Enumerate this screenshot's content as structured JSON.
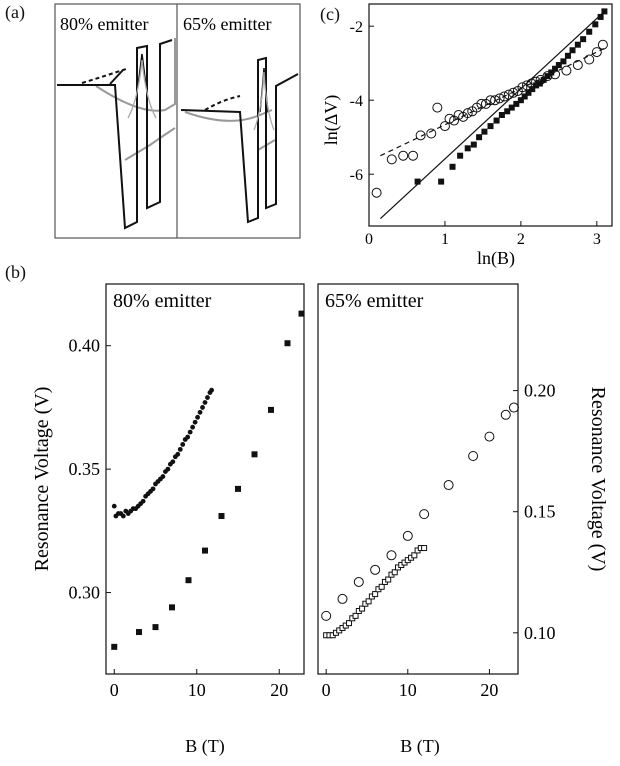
{
  "panel_labels": {
    "a": "(a)",
    "b": "(b)",
    "c": "(c)"
  },
  "chart_data": [
    {
      "id": "a",
      "type": "diagram",
      "subpanels": [
        {
          "label": "80% emitter"
        },
        {
          "label": "65% emitter"
        }
      ]
    },
    {
      "id": "c",
      "type": "scatter",
      "xlabel": "ln(B)",
      "ylabel": "ln(ΔV)",
      "xlim": [
        0,
        3.2
      ],
      "ylim": [
        -7.4,
        -1.4
      ],
      "xticks": [
        0,
        1,
        2,
        3
      ],
      "yticks": [
        -2,
        -4,
        -6
      ],
      "ytick_labels": [
        "-2",
        "-4",
        "-6"
      ],
      "series": [
        {
          "marker": "square-filled",
          "x": [
            0.64,
            0.95,
            1.1,
            1.2,
            1.3,
            1.38,
            1.45,
            1.52,
            1.6,
            1.68,
            1.75,
            1.82,
            1.88,
            1.94,
            2.0,
            2.05,
            2.1,
            2.15,
            2.2,
            2.25,
            2.3,
            2.35,
            2.4,
            2.45,
            2.5,
            2.56,
            2.62,
            2.68,
            2.75,
            2.82,
            2.9,
            2.98,
            3.05,
            3.1
          ],
          "y": [
            -6.2,
            -6.2,
            -5.8,
            -5.5,
            -5.3,
            -5.2,
            -5.0,
            -4.85,
            -4.7,
            -4.55,
            -4.4,
            -4.3,
            -4.2,
            -4.1,
            -4.0,
            -3.9,
            -3.8,
            -3.7,
            -3.6,
            -3.55,
            -3.45,
            -3.35,
            -3.25,
            -3.15,
            -3.05,
            -2.95,
            -2.8,
            -2.65,
            -2.5,
            -2.35,
            -2.15,
            -1.95,
            -1.75,
            -1.6
          ]
        },
        {
          "marker": "circle-open",
          "x": [
            0.1,
            0.3,
            0.45,
            0.58,
            0.68,
            0.82,
            0.9,
            1.0,
            1.06,
            1.12,
            1.18,
            1.24,
            1.3,
            1.36,
            1.42,
            1.48,
            1.54,
            1.6,
            1.66,
            1.72,
            1.78,
            1.84,
            1.9,
            1.96,
            2.02,
            2.08,
            2.14,
            2.2,
            2.26,
            2.35,
            2.45,
            2.6,
            2.75,
            2.9,
            3.0,
            3.08
          ],
          "y": [
            -6.5,
            -5.6,
            -5.5,
            -5.5,
            -4.95,
            -4.9,
            -4.2,
            -4.7,
            -4.5,
            -4.55,
            -4.4,
            -4.45,
            -4.35,
            -4.3,
            -4.2,
            -4.1,
            -4.1,
            -4.0,
            -4.0,
            -3.95,
            -3.9,
            -3.85,
            -3.8,
            -3.75,
            -3.65,
            -3.6,
            -3.55,
            -3.5,
            -3.45,
            -3.35,
            -3.3,
            -3.2,
            -3.05,
            -2.9,
            -2.7,
            -2.5
          ]
        }
      ],
      "fit_lines": [
        {
          "style": "solid",
          "x": [
            0.15,
            3.1
          ],
          "y": [
            -7.2,
            -1.6
          ]
        },
        {
          "style": "dashed",
          "x": [
            0.15,
            3.1
          ],
          "y": [
            -5.5,
            -2.6
          ]
        }
      ]
    },
    {
      "id": "b1",
      "type": "scatter",
      "title": "80% emitter",
      "xlabel": "B (T)",
      "ylabel": "Resonance Voltage (V)",
      "xlim": [
        -1,
        23
      ],
      "ylim": [
        0.267,
        0.425
      ],
      "xticks": [
        0,
        10,
        20
      ],
      "yticks": [
        0.3,
        0.35,
        0.4
      ],
      "ytick_labels": [
        "0.30",
        "0.35",
        "0.40"
      ],
      "series": [
        {
          "marker": "dot-filled",
          "x": [
            0,
            0.2,
            0.5,
            0.8,
            1.1,
            1.4,
            1.7,
            2.0,
            2.3,
            2.6,
            2.9,
            3.2,
            3.5,
            3.8,
            4.1,
            4.4,
            4.7,
            5.0,
            5.3,
            5.6,
            5.9,
            6.2,
            6.5,
            6.8,
            7.1,
            7.4,
            7.7,
            8.0,
            8.3,
            8.6,
            8.9,
            9.2,
            9.5,
            9.8,
            10.1,
            10.4,
            10.7,
            11.0,
            11.3,
            11.6,
            11.8
          ],
          "y": [
            0.335,
            0.331,
            0.332,
            0.332,
            0.331,
            0.333,
            0.332,
            0.333,
            0.334,
            0.334,
            0.335,
            0.336,
            0.337,
            0.339,
            0.34,
            0.341,
            0.342,
            0.344,
            0.345,
            0.346,
            0.347,
            0.349,
            0.35,
            0.352,
            0.353,
            0.355,
            0.356,
            0.358,
            0.36,
            0.362,
            0.363,
            0.365,
            0.367,
            0.369,
            0.371,
            0.373,
            0.375,
            0.377,
            0.379,
            0.381,
            0.382
          ]
        },
        {
          "marker": "square-filled",
          "x": [
            0,
            3,
            5,
            7,
            9,
            11,
            13,
            15,
            17,
            19,
            21,
            22.7
          ],
          "y": [
            0.278,
            0.284,
            0.286,
            0.294,
            0.305,
            0.317,
            0.331,
            0.342,
            0.356,
            0.374,
            0.401,
            0.413
          ]
        }
      ]
    },
    {
      "id": "b2",
      "type": "scatter",
      "title": "65% emitter",
      "xlabel": "B (T)",
      "ylabel": "Resonance Voltage (V)",
      "xlim": [
        -1,
        23.5
      ],
      "ylim": [
        0.083,
        0.244
      ],
      "xticks": [
        0,
        10,
        20
      ],
      "yticks": [
        0.1,
        0.15,
        0.2
      ],
      "ytick_labels": [
        "0.10",
        "0.15",
        "0.20"
      ],
      "series": [
        {
          "marker": "square-open",
          "x": [
            0,
            0.4,
            0.8,
            1.2,
            1.6,
            2.0,
            2.4,
            2.8,
            3.2,
            3.6,
            4.0,
            4.4,
            4.8,
            5.2,
            5.6,
            6.0,
            6.4,
            6.8,
            7.2,
            7.6,
            8.0,
            8.4,
            8.8,
            9.2,
            9.6,
            10.0,
            10.4,
            10.8,
            11.2,
            11.6,
            12.0
          ],
          "y": [
            0.099,
            0.099,
            0.099,
            0.1,
            0.101,
            0.102,
            0.103,
            0.104,
            0.106,
            0.107,
            0.109,
            0.11,
            0.112,
            0.113,
            0.115,
            0.116,
            0.118,
            0.119,
            0.121,
            0.122,
            0.124,
            0.125,
            0.127,
            0.128,
            0.129,
            0.13,
            0.131,
            0.132,
            0.134,
            0.135,
            0.135
          ]
        },
        {
          "marker": "circle-open",
          "x": [
            0,
            2,
            4,
            6,
            8,
            10,
            12,
            15,
            18,
            20,
            22,
            23
          ],
          "y": [
            0.107,
            0.114,
            0.121,
            0.126,
            0.132,
            0.14,
            0.149,
            0.161,
            0.173,
            0.181,
            0.19,
            0.193
          ]
        }
      ]
    }
  ]
}
